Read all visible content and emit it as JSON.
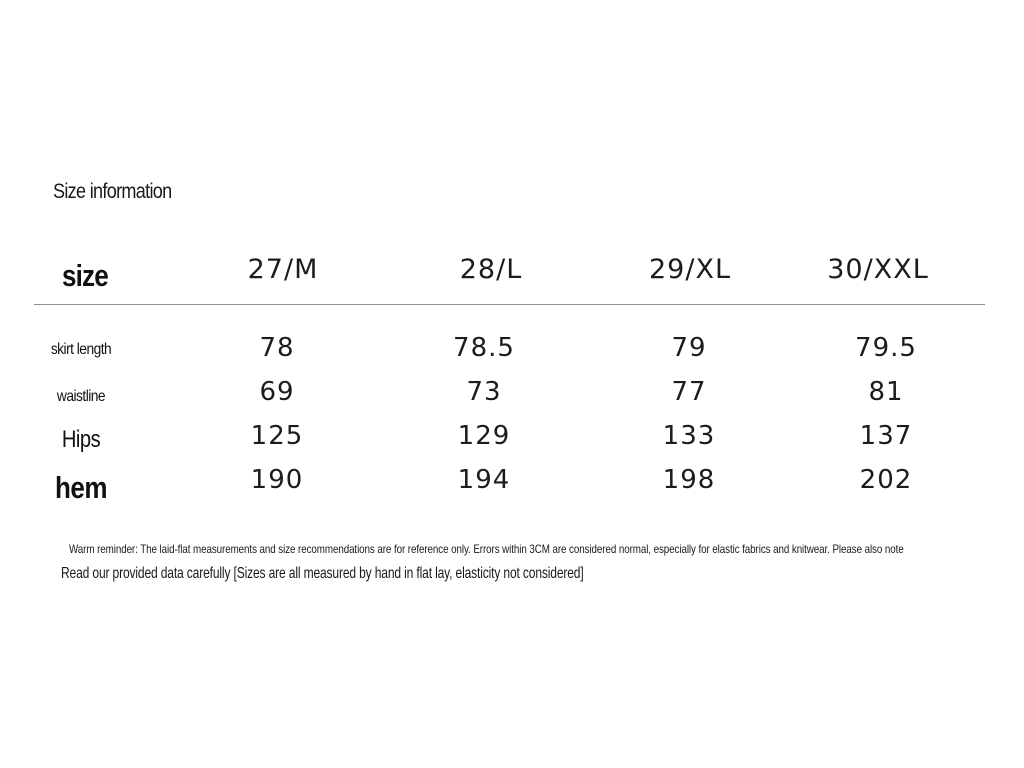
{
  "title": "Size information",
  "table": {
    "header_label": "size",
    "columns": [
      "27/M",
      "28/L",
      "29/XL",
      "30/XXL"
    ],
    "rows": [
      {
        "label": "skirt length",
        "values": [
          "78",
          "78.5",
          "79",
          "79.5"
        ]
      },
      {
        "label": "waistline",
        "values": [
          "69",
          "73",
          "77",
          "81"
        ]
      },
      {
        "label": "Hips",
        "values": [
          "125",
          "129",
          "133",
          "137"
        ]
      },
      {
        "label": "hem",
        "values": [
          "190",
          "194",
          "198",
          "202"
        ]
      }
    ]
  },
  "notes": {
    "reminder": "Warm reminder: The laid-flat measurements and size recommendations are for reference only. Errors within 3CM are considered normal, especially for elastic fabrics and knitwear. Please also note",
    "read_carefully": "Read our provided data carefully [Sizes are all measured by hand in flat lay, elasticity not considered]"
  }
}
